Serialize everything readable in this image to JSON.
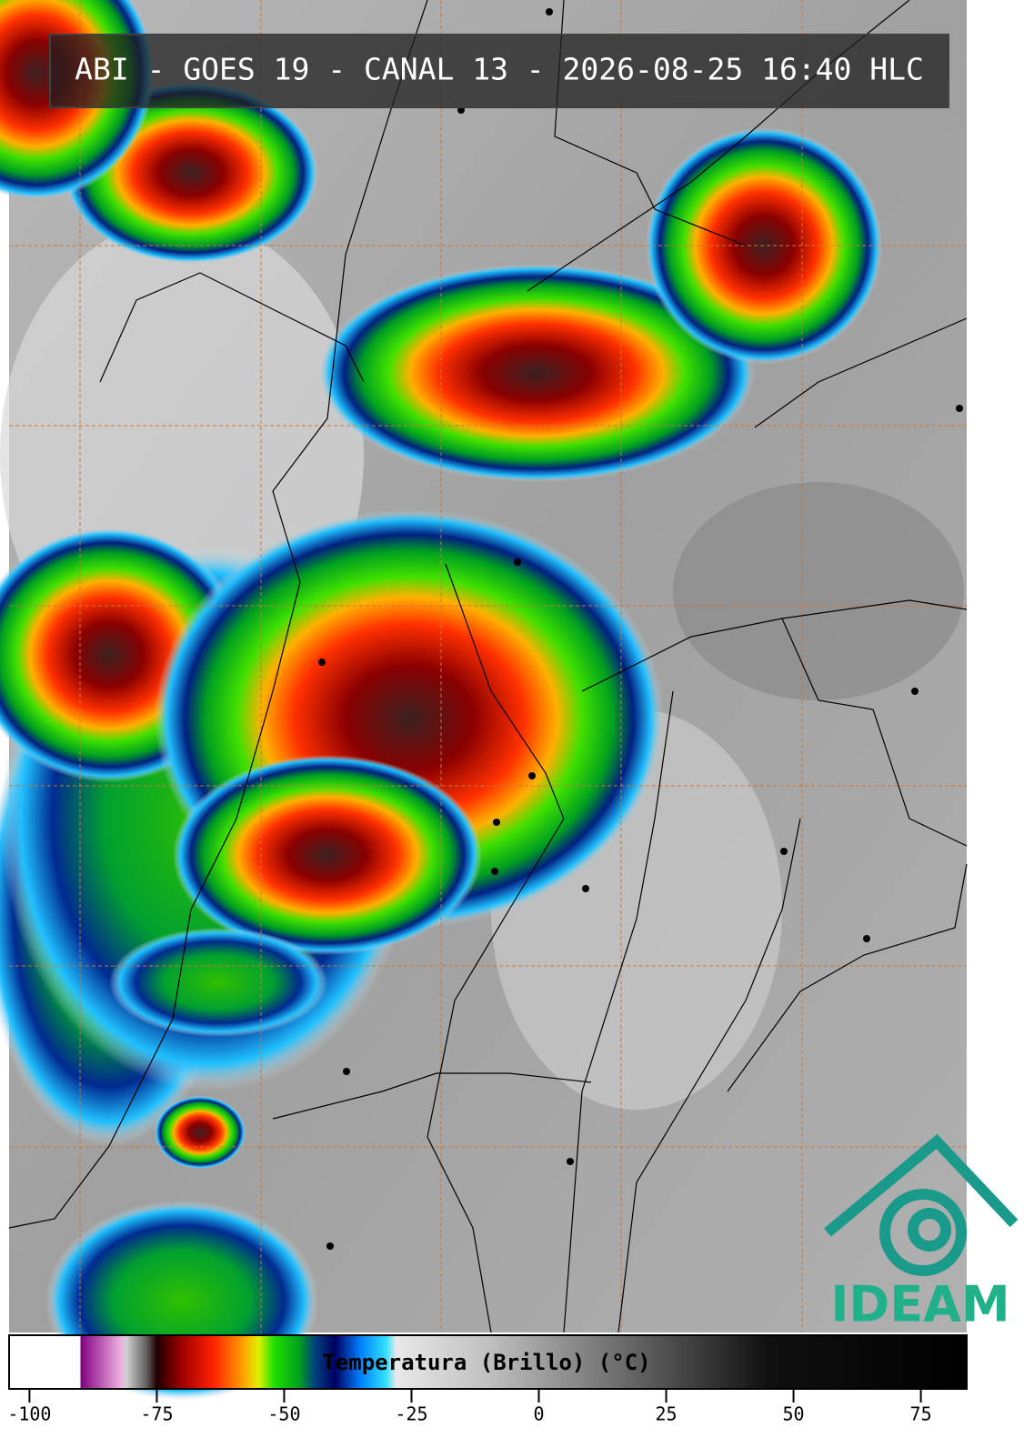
{
  "header": {
    "title": "ABI - GOES 19 - CANAL 13 - 2026-08-25 16:40 HLC"
  },
  "logo": {
    "text": "IDEAM"
  },
  "colorbar": {
    "label": "Temperatura (Brillo) (°C)",
    "xlim": [
      -104,
      84
    ],
    "xticks": [
      -100,
      -75,
      -50,
      -25,
      0,
      25,
      50,
      75
    ],
    "colormap": [
      {
        "value": -104,
        "color": "#ffffff"
      },
      {
        "value": -90,
        "color": "#ffffff"
      },
      {
        "value": -90,
        "color": "#800080"
      },
      {
        "value": -82,
        "color": "#f0b0e0"
      },
      {
        "value": -81,
        "color": "#d0d0d0"
      },
      {
        "value": -77,
        "color": "#606060"
      },
      {
        "value": -75,
        "color": "#200000"
      },
      {
        "value": -70,
        "color": "#a00000"
      },
      {
        "value": -64,
        "color": "#ff2000"
      },
      {
        "value": -58,
        "color": "#ffa000"
      },
      {
        "value": -55,
        "color": "#e0f000"
      },
      {
        "value": -52,
        "color": "#20e000"
      },
      {
        "value": -47,
        "color": "#00a020"
      },
      {
        "value": -44,
        "color": "#004080"
      },
      {
        "value": -40,
        "color": "#000060"
      },
      {
        "value": -35,
        "color": "#0080ff"
      },
      {
        "value": -30,
        "color": "#30e0ff"
      },
      {
        "value": -28,
        "color": "#e8e8e8"
      },
      {
        "value": -10,
        "color": "#c0c0c0"
      },
      {
        "value": 10,
        "color": "#808080"
      },
      {
        "value": 30,
        "color": "#404040"
      },
      {
        "value": 45,
        "color": "#101010"
      },
      {
        "value": 84,
        "color": "#000000"
      }
    ]
  }
}
